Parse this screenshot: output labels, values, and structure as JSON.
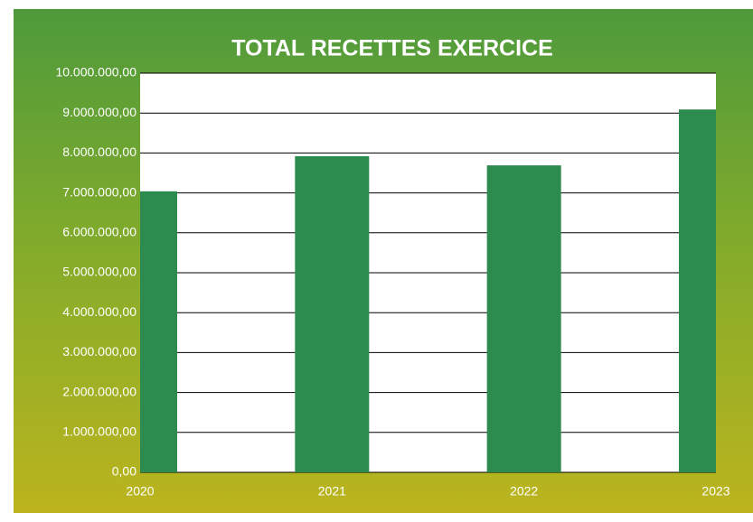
{
  "chart_data": {
    "type": "bar",
    "title": "TOTAL RECETTES EXERCICE",
    "categories": [
      "2020",
      "2021",
      "2022",
      "2023"
    ],
    "values": [
      7040000,
      7920000,
      7690000,
      9090000
    ],
    "color": "#2e8b50",
    "ylim": [
      0,
      10000000
    ],
    "yticks": [
      {
        "value": 0,
        "label": "0,00"
      },
      {
        "value": 1000000,
        "label": "1.000.000,00"
      },
      {
        "value": 2000000,
        "label": "2.000.000,00"
      },
      {
        "value": 3000000,
        "label": "3.000.000,00"
      },
      {
        "value": 4000000,
        "label": "4.000.000,00"
      },
      {
        "value": 5000000,
        "label": "5.000.000,00"
      },
      {
        "value": 6000000,
        "label": "6.000.000,00"
      },
      {
        "value": 7000000,
        "label": "7.000.000,00"
      },
      {
        "value": 8000000,
        "label": "8.000.000,00"
      },
      {
        "value": 9000000,
        "label": "9.000.000,00"
      },
      {
        "value": 10000000,
        "label": "10.000.000,00"
      }
    ],
    "grid": true
  }
}
